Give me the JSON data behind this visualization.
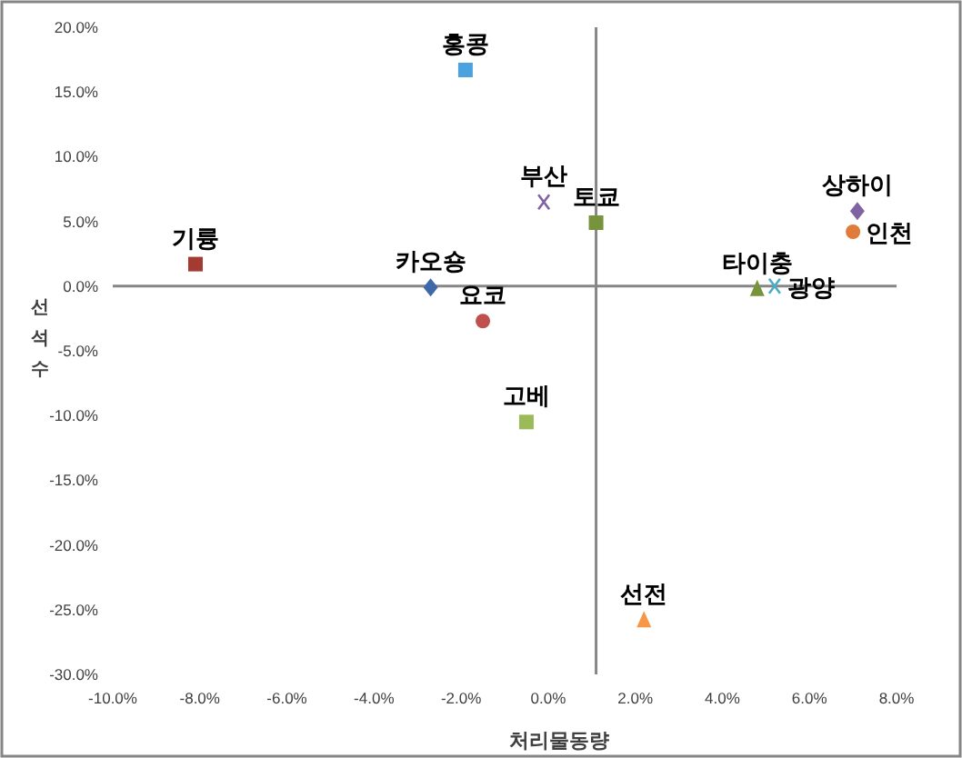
{
  "chart_data": {
    "type": "scatter",
    "xlabel": "처리물동량",
    "ylabel": "선석수",
    "xlim": [
      -10,
      8
    ],
    "ylim": [
      -30,
      20
    ],
    "xticks": [
      {
        "value": -10,
        "label": "-10.0%"
      },
      {
        "value": -8,
        "label": "-8.0%"
      },
      {
        "value": -6,
        "label": "-6.0%"
      },
      {
        "value": -4,
        "label": "-4.0%"
      },
      {
        "value": -2,
        "label": "-2.0%"
      },
      {
        "value": 0,
        "label": "0.0%"
      },
      {
        "value": 2,
        "label": "2.0%"
      },
      {
        "value": 4,
        "label": "4.0%"
      },
      {
        "value": 6,
        "label": "6.0%"
      },
      {
        "value": 8,
        "label": "8.0%"
      }
    ],
    "yticks": [
      {
        "value": 20,
        "label": "20.0%"
      },
      {
        "value": 15,
        "label": "15.0%"
      },
      {
        "value": 10,
        "label": "10.0%"
      },
      {
        "value": 5,
        "label": "5.0%"
      },
      {
        "value": 0,
        "label": "0.0%"
      },
      {
        "value": -5,
        "label": "-5.0%"
      },
      {
        "value": -10,
        "label": "-10.0%"
      },
      {
        "value": -15,
        "label": "-15.0%"
      },
      {
        "value": -20,
        "label": "-20.0%"
      },
      {
        "value": -25,
        "label": "-25.0%"
      },
      {
        "value": -30,
        "label": "-30.0%"
      }
    ],
    "ref_lines": [
      {
        "axis": "y",
        "value": 0,
        "color": "#868686"
      },
      {
        "axis": "x",
        "value": 1.1,
        "color": "#868686"
      }
    ],
    "grid": false,
    "series": [
      {
        "name": "홍콩",
        "color": "#4aa3df",
        "marker": "square",
        "x": [
          -1.9
        ],
        "values": [
          16.7
        ]
      },
      {
        "name": "기륭",
        "color": "#a33b32",
        "marker": "square",
        "x": [
          -8.1
        ],
        "values": [
          1.7
        ]
      },
      {
        "name": "카오숑",
        "color": "#3e68a8",
        "marker": "diamond",
        "x": [
          -2.7
        ],
        "values": [
          -0.1
        ]
      },
      {
        "name": "요코",
        "color": "#c0504d",
        "marker": "circle",
        "x": [
          -1.5
        ],
        "values": [
          -2.7
        ]
      },
      {
        "name": "부산",
        "color": "#8064a2",
        "marker": "cross",
        "x": [
          -0.1
        ],
        "values": [
          6.5
        ]
      },
      {
        "name": "토쿄",
        "color": "#77933c",
        "marker": "square",
        "x": [
          1.1
        ],
        "values": [
          4.9
        ]
      },
      {
        "name": "고베",
        "color": "#9bbb59",
        "marker": "square",
        "x": [
          -0.5
        ],
        "values": [
          -10.5
        ]
      },
      {
        "name": "선전",
        "color": "#f79646",
        "marker": "triangle",
        "x": [
          2.2
        ],
        "values": [
          -25.8
        ]
      },
      {
        "name": "타이충",
        "color": "#77933c",
        "marker": "triangle",
        "x": [
          4.8
        ],
        "values": [
          -0.2
        ]
      },
      {
        "name": "광양",
        "color": "#4bacc6",
        "marker": "cross",
        "x": [
          5.2
        ],
        "values": [
          0.0
        ]
      },
      {
        "name": "상하이",
        "color": "#8064a2",
        "marker": "diamond",
        "x": [
          7.1
        ],
        "values": [
          5.8
        ]
      },
      {
        "name": "인천",
        "color": "#e07b39",
        "marker": "circle",
        "x": [
          7.0
        ],
        "values": [
          4.2
        ]
      }
    ]
  }
}
